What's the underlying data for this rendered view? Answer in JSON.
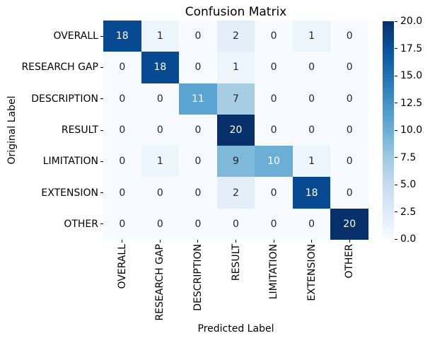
{
  "chart_data": {
    "type": "heatmap",
    "title": "Confusion Matrix",
    "xlabel": "Predicted Label",
    "ylabel": "Original Label",
    "categories": [
      "OVERALL",
      "RESEARCH GAP",
      "DESCRIPTION",
      "RESULT",
      "LIMITATION",
      "EXTENSION",
      "OTHER"
    ],
    "matrix": [
      [
        18,
        1,
        0,
        2,
        0,
        1,
        0
      ],
      [
        0,
        18,
        0,
        1,
        0,
        0,
        0
      ],
      [
        0,
        0,
        11,
        7,
        0,
        0,
        0
      ],
      [
        0,
        0,
        0,
        20,
        0,
        0,
        0
      ],
      [
        0,
        1,
        0,
        9,
        10,
        1,
        0
      ],
      [
        0,
        0,
        0,
        2,
        0,
        18,
        0
      ],
      [
        0,
        0,
        0,
        0,
        0,
        0,
        20
      ]
    ],
    "vmin": 0,
    "vmax": 20,
    "colormap": {
      "name": "Blues",
      "anchors": [
        "#f7fbff",
        "#deebf7",
        "#c6dbef",
        "#9ecae1",
        "#6baed6",
        "#4292c6",
        "#2171b5",
        "#08519c",
        "#08306b"
      ]
    },
    "annotation_text_colors": {
      "on_light": "#262626",
      "on_dark": "#ffffff"
    },
    "colorbar": {
      "position": "right",
      "ticks": [
        "20.0",
        "17.5",
        "15.0",
        "12.5",
        "10.0",
        "7.5",
        "5.0",
        "2.5",
        "0.0"
      ]
    },
    "grid": false,
    "background": "#ffffff"
  }
}
